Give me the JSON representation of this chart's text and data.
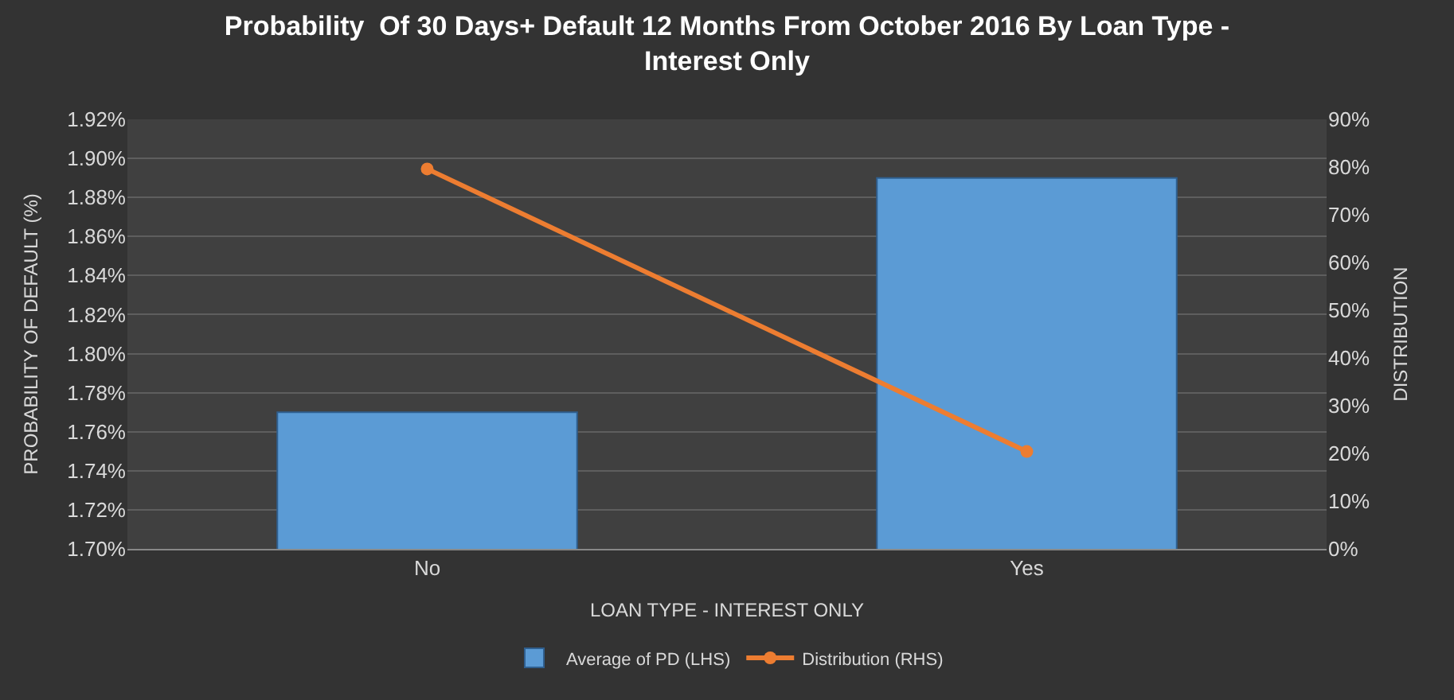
{
  "chart_data": {
    "type": "bar",
    "title": "Probability  Of 30 Days+ Default 12 Months From October 2016 By Loan Type - Interest Only",
    "xlabel": "LOAN TYPE - INTEREST ONLY",
    "ylabel": "PROBABILITY OF DEFAULT (%)",
    "y2label": "DISTRIBUTION",
    "categories": [
      "No",
      "Yes"
    ],
    "series": [
      {
        "name": "Average of PD (LHS)",
        "color": "#5b9bd5",
        "values": [
          1.77,
          1.89
        ]
      },
      {
        "name": "Distribution (RHS)",
        "type": "line",
        "axis": "y2",
        "color": "#ed7d31",
        "values": [
          79.6,
          20.4
        ],
        "marker": "circle"
      }
    ],
    "ylim": [
      1.7,
      1.92
    ],
    "yticks": [
      {
        "value": 1.7,
        "label": "1.70%"
      },
      {
        "value": 1.72,
        "label": "1.72%"
      },
      {
        "value": 1.74,
        "label": "1.74%"
      },
      {
        "value": 1.76,
        "label": "1.76%"
      },
      {
        "value": 1.78,
        "label": "1.78%"
      },
      {
        "value": 1.8,
        "label": "1.80%"
      },
      {
        "value": 1.82,
        "label": "1.82%"
      },
      {
        "value": 1.84,
        "label": "1.84%"
      },
      {
        "value": 1.86,
        "label": "1.86%"
      },
      {
        "value": 1.88,
        "label": "1.88%"
      },
      {
        "value": 1.9,
        "label": "1.90%"
      },
      {
        "value": 1.92,
        "label": "1.92%"
      }
    ],
    "y2lim": [
      0,
      90
    ],
    "y2ticks": [
      {
        "value": 0,
        "label": "0%"
      },
      {
        "value": 10,
        "label": "10%"
      },
      {
        "value": 20,
        "label": "20%"
      },
      {
        "value": 30,
        "label": "30%"
      },
      {
        "value": 40,
        "label": "40%"
      },
      {
        "value": 50,
        "label": "50%"
      },
      {
        "value": 60,
        "label": "60%"
      },
      {
        "value": 70,
        "label": "70%"
      },
      {
        "value": 80,
        "label": "80%"
      },
      {
        "value": 90,
        "label": "90%"
      }
    ],
    "grid": "y",
    "legend": "bottom"
  }
}
